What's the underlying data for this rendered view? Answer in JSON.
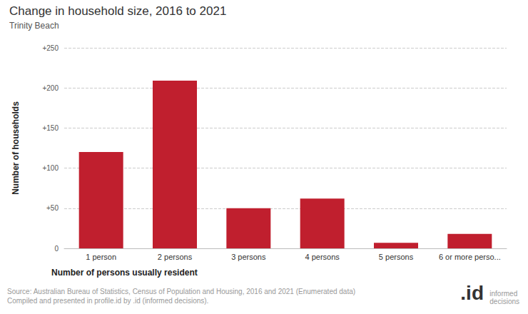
{
  "chart_data": {
    "type": "bar",
    "title": "Change in household size, 2016 to 2021",
    "subtitle": "Trinity Beach",
    "x_label": "Number of persons usually resident",
    "y_label": "Number of households",
    "categories": [
      "1 person",
      "2 persons",
      "3 persons",
      "4 persons",
      "5 persons",
      "6 or more perso..."
    ],
    "values": [
      120,
      209,
      50,
      62,
      7,
      18
    ],
    "color": "#c01f2e",
    "ylim": [
      0,
      250
    ],
    "yticks": [
      0,
      {
        "value": 50,
        "label": "+50"
      },
      {
        "value": 100,
        "label": "+100"
      },
      {
        "value": 150,
        "label": "+150"
      },
      {
        "value": 200,
        "label": "+200"
      },
      {
        "value": 250,
        "label": "+250"
      }
    ],
    "grid": true,
    "source": [
      "Source: Australian Bureau of Statistics, Census of Population and Housing, 2016 and 2021 (Enumerated data)",
      "Compiled and presented in profile.id by .id (informed decisions)."
    ],
    "logo": [
      ".id",
      "informed decisions"
    ]
  }
}
